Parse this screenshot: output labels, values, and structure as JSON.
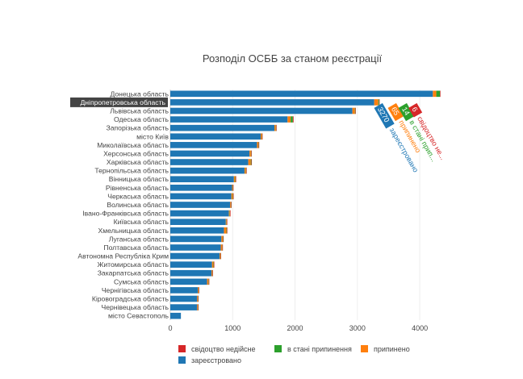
{
  "chart_data": {
    "type": "bar",
    "orientation": "horizontal",
    "stacked": true,
    "title": "Розподіл ОСББ за станом реєстрації",
    "xlabel": "",
    "ylabel": "",
    "xlim": [
      0,
      4400
    ],
    "xticks": [
      0,
      1000,
      2000,
      3000,
      4000
    ],
    "xtick_labels": [
      "0",
      "1000",
      "2000",
      "3000",
      "4000"
    ],
    "grid": true,
    "categories": [
      "Донецька область",
      "Дніпропетровська область",
      "Львівська область",
      "Одеська область",
      "Запорізька область",
      "місто Київ",
      "Миколаївська область",
      "Херсонська область",
      "Харківська область",
      "Тернопільська область",
      "Вінницька область",
      "Рівненська область",
      "Черкаська область",
      "Волинська область",
      "Івано-Франківська область",
      "Київська область",
      "Хмельницька область",
      "Луганська область",
      "Полтавська область",
      "Автономна Республіка Крим",
      "Житомирська область",
      "Закарпатська область",
      "Сумська область",
      "Чернігівська область",
      "Кіровоградська область",
      "Чернівецька область",
      "місто Севастополь"
    ],
    "series": [
      {
        "name": "зареєстровано",
        "color": "#1f77b4",
        "values": [
          4210,
          3270,
          2920,
          1880,
          1670,
          1450,
          1390,
          1270,
          1250,
          1190,
          1020,
          990,
          980,
          960,
          940,
          890,
          860,
          820,
          810,
          790,
          670,
          660,
          590,
          440,
          430,
          430,
          170
        ]
      },
      {
        "name": "припинено",
        "color": "#ff7f0e",
        "values": [
          55,
          65,
          40,
          50,
          22,
          18,
          22,
          22,
          40,
          22,
          22,
          12,
          22,
          12,
          14,
          12,
          40,
          22,
          22,
          12,
          22,
          12,
          22,
          12,
          12,
          12,
          0
        ]
      },
      {
        "name": "в стані припинення",
        "color": "#2ca02c",
        "values": [
          60,
          14,
          8,
          35,
          6,
          4,
          6,
          6,
          10,
          6,
          6,
          4,
          6,
          4,
          4,
          4,
          8,
          6,
          4,
          4,
          6,
          4,
          6,
          4,
          4,
          4,
          0
        ]
      },
      {
        "name": "свідоцтво недійсне",
        "color": "#d62728",
        "values": [
          8,
          6,
          4,
          12,
          4,
          4,
          4,
          4,
          4,
          4,
          4,
          4,
          4,
          4,
          4,
          4,
          4,
          4,
          4,
          4,
          4,
          4,
          4,
          4,
          4,
          4,
          0
        ]
      }
    ],
    "legend": {
      "placement": "bottom",
      "order": [
        "свідоцтво недійсне",
        "в стані припинення",
        "припинено",
        "зареєстровано"
      ]
    },
    "hover": {
      "category": "Дніпропетровська область",
      "labels": [
        {
          "value": "3270",
          "series_text": "зареєстровано",
          "color": "#1f77b4"
        },
        {
          "value": "65",
          "series_text": "припинено",
          "color": "#ff7f0e"
        },
        {
          "value": "14",
          "series_text": "в стані прип...",
          "color": "#2ca02c"
        },
        {
          "value": "6",
          "series_text": "свідоцтво не...",
          "color": "#d62728"
        }
      ]
    }
  }
}
